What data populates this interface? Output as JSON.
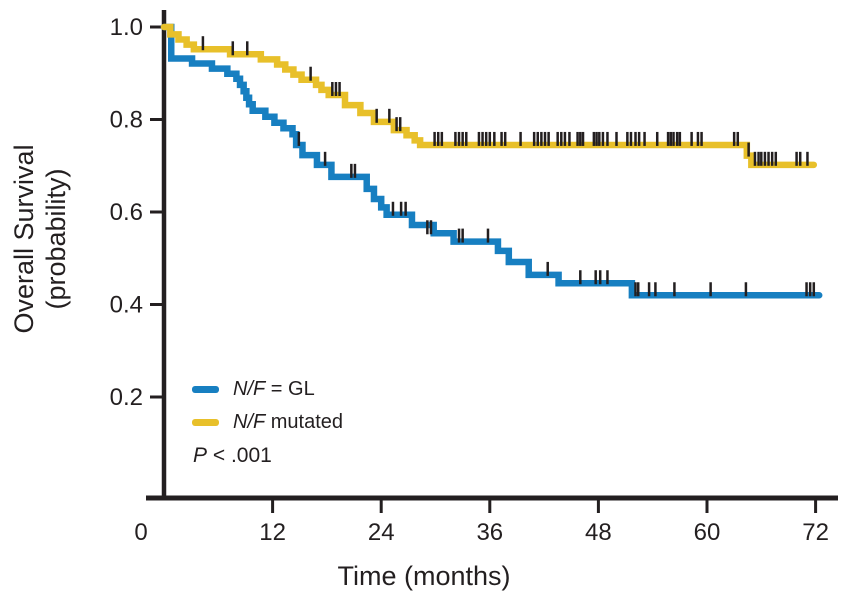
{
  "chart_data": {
    "type": "line",
    "subtype": "kaplan-meier-step",
    "title": "",
    "xlabel": "Time (months)",
    "ylabel_line1": "Overall Survival",
    "ylabel_line2": "(probability)",
    "xlim": [
      0,
      72
    ],
    "ylim": [
      0,
      1.0
    ],
    "xticks": [
      0,
      12,
      24,
      36,
      48,
      60,
      72
    ],
    "yticks": [
      0.2,
      0.4,
      0.6,
      0.8,
      1.0
    ],
    "grid": false,
    "legend_position": "lower-left-inside",
    "annotation": {
      "italic": "P",
      "rest": " < .001"
    },
    "series": [
      {
        "name": "N/F = GL",
        "legend_italic": "N/F",
        "legend_rest": " = GL",
        "color": "#177fc1",
        "end_month": 72.4,
        "steps": [
          [
            0,
            1.0
          ],
          [
            0.8,
            0.932
          ],
          [
            3.1,
            0.921
          ],
          [
            5.3,
            0.91
          ],
          [
            7.0,
            0.899
          ],
          [
            8.0,
            0.888
          ],
          [
            8.4,
            0.875
          ],
          [
            8.8,
            0.861
          ],
          [
            9.1,
            0.847
          ],
          [
            9.4,
            0.833
          ],
          [
            9.8,
            0.819
          ],
          [
            11.2,
            0.806
          ],
          [
            12.2,
            0.793
          ],
          [
            13.2,
            0.781
          ],
          [
            14.2,
            0.768
          ],
          [
            14.6,
            0.745
          ],
          [
            15.3,
            0.723
          ],
          [
            16.9,
            0.702
          ],
          [
            18.5,
            0.676
          ],
          [
            22.4,
            0.65
          ],
          [
            23.2,
            0.628
          ],
          [
            24.0,
            0.61
          ],
          [
            24.6,
            0.594
          ],
          [
            27.4,
            0.572
          ],
          [
            29.8,
            0.554
          ],
          [
            32.0,
            0.536
          ],
          [
            36.9,
            0.516
          ],
          [
            38.1,
            0.492
          ],
          [
            40.3,
            0.464
          ],
          [
            43.6,
            0.446
          ],
          [
            51.7,
            0.42
          ]
        ],
        "censors": [
          [
            14.9,
            0.745
          ],
          [
            17.8,
            0.702
          ],
          [
            20.7,
            0.676
          ],
          [
            21.1,
            0.676
          ],
          [
            25.3,
            0.594
          ],
          [
            26.2,
            0.594
          ],
          [
            26.7,
            0.594
          ],
          [
            29.1,
            0.554
          ],
          [
            29.5,
            0.554
          ],
          [
            32.6,
            0.536
          ],
          [
            33.0,
            0.536
          ],
          [
            35.8,
            0.536
          ],
          [
            42.4,
            0.464
          ],
          [
            46.0,
            0.446
          ],
          [
            47.7,
            0.446
          ],
          [
            48.2,
            0.446
          ],
          [
            49.0,
            0.446
          ],
          [
            52.1,
            0.42
          ],
          [
            52.4,
            0.42
          ],
          [
            53.6,
            0.42
          ],
          [
            54.3,
            0.42
          ],
          [
            56.4,
            0.42
          ],
          [
            60.4,
            0.42
          ],
          [
            64.3,
            0.42
          ],
          [
            71.0,
            0.42
          ],
          [
            71.4,
            0.42
          ],
          [
            71.8,
            0.42
          ]
        ]
      },
      {
        "name": "N/F mutated",
        "legend_italic": "N/F",
        "legend_rest": " mutated",
        "color": "#e8c02a",
        "end_month": 71.8,
        "steps": [
          [
            0,
            1.0
          ],
          [
            0.7,
            0.984
          ],
          [
            1.6,
            0.973
          ],
          [
            2.5,
            0.962
          ],
          [
            3.3,
            0.952
          ],
          [
            7.3,
            0.941
          ],
          [
            10.7,
            0.93
          ],
          [
            12.5,
            0.919
          ],
          [
            13.4,
            0.908
          ],
          [
            14.3,
            0.897
          ],
          [
            15.2,
            0.886
          ],
          [
            16.8,
            0.875
          ],
          [
            17.4,
            0.864
          ],
          [
            18.2,
            0.853
          ],
          [
            20.0,
            0.831
          ],
          [
            21.7,
            0.814
          ],
          [
            23.2,
            0.795
          ],
          [
            25.4,
            0.777
          ],
          [
            26.8,
            0.766
          ],
          [
            27.7,
            0.755
          ],
          [
            28.3,
            0.745
          ],
          [
            64.4,
            0.722
          ],
          [
            64.9,
            0.702
          ]
        ],
        "censors": [
          [
            4.3,
            0.952
          ],
          [
            7.6,
            0.941
          ],
          [
            9.2,
            0.941
          ],
          [
            16.2,
            0.886
          ],
          [
            18.6,
            0.853
          ],
          [
            19.0,
            0.853
          ],
          [
            19.4,
            0.853
          ],
          [
            23.5,
            0.795
          ],
          [
            24.9,
            0.795
          ],
          [
            25.7,
            0.777
          ],
          [
            26.1,
            0.777
          ],
          [
            29.9,
            0.745
          ],
          [
            30.3,
            0.745
          ],
          [
            30.7,
            0.745
          ],
          [
            32.2,
            0.745
          ],
          [
            32.6,
            0.745
          ],
          [
            33.0,
            0.745
          ],
          [
            33.4,
            0.745
          ],
          [
            34.8,
            0.745
          ],
          [
            35.2,
            0.745
          ],
          [
            35.6,
            0.745
          ],
          [
            36.0,
            0.745
          ],
          [
            36.5,
            0.745
          ],
          [
            37.3,
            0.745
          ],
          [
            37.7,
            0.745
          ],
          [
            39.4,
            0.745
          ],
          [
            40.9,
            0.745
          ],
          [
            41.3,
            0.745
          ],
          [
            41.7,
            0.745
          ],
          [
            42.1,
            0.745
          ],
          [
            42.5,
            0.745
          ],
          [
            43.5,
            0.745
          ],
          [
            43.9,
            0.745
          ],
          [
            44.3,
            0.745
          ],
          [
            44.8,
            0.745
          ],
          [
            45.7,
            0.745
          ],
          [
            46.0,
            0.745
          ],
          [
            46.3,
            0.745
          ],
          [
            47.5,
            0.745
          ],
          [
            47.8,
            0.745
          ],
          [
            48.1,
            0.745
          ],
          [
            48.5,
            0.745
          ],
          [
            49.0,
            0.745
          ],
          [
            50.0,
            0.745
          ],
          [
            51.2,
            0.745
          ],
          [
            51.6,
            0.745
          ],
          [
            52.1,
            0.745
          ],
          [
            52.5,
            0.745
          ],
          [
            53.1,
            0.745
          ],
          [
            54.5,
            0.745
          ],
          [
            55.7,
            0.745
          ],
          [
            56.0,
            0.745
          ],
          [
            56.3,
            0.745
          ],
          [
            56.7,
            0.745
          ],
          [
            57.0,
            0.745
          ],
          [
            58.3,
            0.745
          ],
          [
            59.0,
            0.745
          ],
          [
            59.4,
            0.745
          ],
          [
            63.0,
            0.745
          ],
          [
            63.4,
            0.745
          ],
          [
            64.6,
            0.722
          ],
          [
            65.3,
            0.702
          ],
          [
            65.7,
            0.702
          ],
          [
            66.0,
            0.702
          ],
          [
            66.4,
            0.702
          ],
          [
            66.8,
            0.702
          ],
          [
            67.2,
            0.702
          ],
          [
            67.6,
            0.702
          ],
          [
            69.9,
            0.702
          ],
          [
            70.3,
            0.702
          ],
          [
            71.1,
            0.702
          ]
        ]
      }
    ]
  },
  "colors": {
    "axis": "#231f20",
    "text": "#231f20",
    "background": "#ffffff"
  }
}
